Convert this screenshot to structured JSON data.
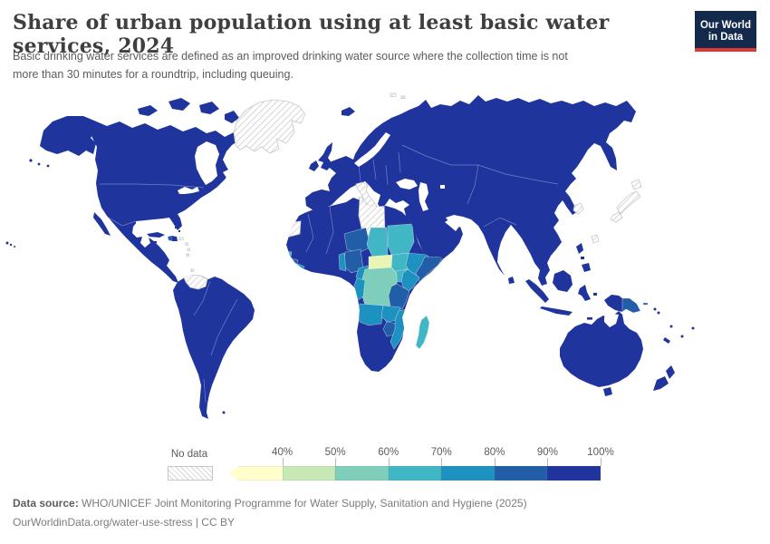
{
  "header": {
    "title": "Share of urban population using at least basic water services, 2024",
    "subtitle": "Basic drinking water services are defined as an improved drinking water source where the collection time is not\nmore than 30 minutes for a roundtrip, including queuing."
  },
  "logo": {
    "line1": "Our World",
    "line2": "in Data",
    "bg": "#132a4d",
    "accent": "#d93a34"
  },
  "legend": {
    "no_data_label": "No data",
    "bins": [
      {
        "range": "<40%",
        "color": "#ffffcc",
        "tick": "40%"
      },
      {
        "range": "40-50%",
        "color": "#c7e9b4",
        "tick": "50%"
      },
      {
        "range": "50-60%",
        "color": "#7fcdbb",
        "tick": "60%"
      },
      {
        "range": "60-70%",
        "color": "#41b6c4",
        "tick": "70%"
      },
      {
        "range": "70-80%",
        "color": "#1d91c0",
        "tick": "80%"
      },
      {
        "range": "80-90%",
        "color": "#225ea8",
        "tick": "90%"
      },
      {
        "range": "90-100%",
        "color": "#20349e",
        "tick": "100%"
      }
    ]
  },
  "footer": {
    "source_label": "Data source:",
    "source_text": " WHO/UNICEF Joint Monitoring Programme for Water Supply, Sanitation and Hygiene (2025)",
    "link_text": "OurWorldinData.org/water-use-stress | CC BY"
  },
  "map": {
    "region_colors": {
      "default": "#20349e",
      "bin_80_90": "#225ea8",
      "bin_70_80": "#1d91c0",
      "bin_60_70": "#41b6c4",
      "bin_50_60": "#7fcdbb",
      "bin_40_50": "#e8f5b4"
    }
  },
  "chart_data": {
    "type": "heatmap",
    "variant": "world-choropleth",
    "title": "Share of urban population using at least basic water services, 2024",
    "unit": "%",
    "legend_position": "bottom",
    "legend_bins": [
      {
        "range": "<40%",
        "color": "#ffffcc"
      },
      {
        "range": "40-50%",
        "color": "#c7e9b4"
      },
      {
        "range": "50-60%",
        "color": "#7fcdbb"
      },
      {
        "range": "60-70%",
        "color": "#41b6c4"
      },
      {
        "range": "70-80%",
        "color": "#1d91c0"
      },
      {
        "range": "80-90%",
        "color": "#225ea8"
      },
      {
        "range": "90-100%",
        "color": "#20349e"
      }
    ],
    "no_data_regions": [
      "Greenland",
      "Libya",
      "Western Sahara",
      "Italy",
      "Corsica/Sardinia",
      "Venezuela",
      "Japan",
      "South Korea",
      "Taiwan",
      "Puerto Rico",
      "Lesser Antilles",
      "Svalbard",
      "Trinidad"
    ],
    "regions": [
      {
        "name": "Most of Europe, North America, South America, Asia, Oceania, North and Southern Africa",
        "bin": "90-100%"
      },
      {
        "name": "Niger",
        "bin": "80-90%"
      },
      {
        "name": "Nigeria",
        "bin": "80-90%"
      },
      {
        "name": "Somalia",
        "bin": "80-90%"
      },
      {
        "name": "Tanzania",
        "bin": "80-90%"
      },
      {
        "name": "Zimbabwe",
        "bin": "80-90%"
      },
      {
        "name": "Sierra Leone",
        "bin": "80-90%"
      },
      {
        "name": "Yemen",
        "bin": "80-90%"
      },
      {
        "name": "Papua New Guinea",
        "bin": "80-90%"
      },
      {
        "name": "Haiti",
        "bin": "80-90%"
      },
      {
        "name": "Ethiopia",
        "bin": "70-80%"
      },
      {
        "name": "Kenya",
        "bin": "70-80%"
      },
      {
        "name": "Cameroon",
        "bin": "70-80%"
      },
      {
        "name": "Angola",
        "bin": "70-80%"
      },
      {
        "name": "Zambia",
        "bin": "70-80%"
      },
      {
        "name": "Mozambique",
        "bin": "70-80%"
      },
      {
        "name": "Liberia",
        "bin": "70-80%"
      },
      {
        "name": "Benin",
        "bin": "70-80%"
      },
      {
        "name": "Congo",
        "bin": "70-80%"
      },
      {
        "name": "Chad",
        "bin": "60-70%"
      },
      {
        "name": "Sudan",
        "bin": "60-70%"
      },
      {
        "name": "South Sudan",
        "bin": "60-70%"
      },
      {
        "name": "Uganda",
        "bin": "60-70%"
      },
      {
        "name": "Madagascar",
        "bin": "60-70%"
      },
      {
        "name": "Guinea-Bissau",
        "bin": "60-70%"
      },
      {
        "name": "DR Congo",
        "bin": "50-60%"
      },
      {
        "name": "Central African Republic",
        "bin": "40-50%"
      }
    ]
  }
}
